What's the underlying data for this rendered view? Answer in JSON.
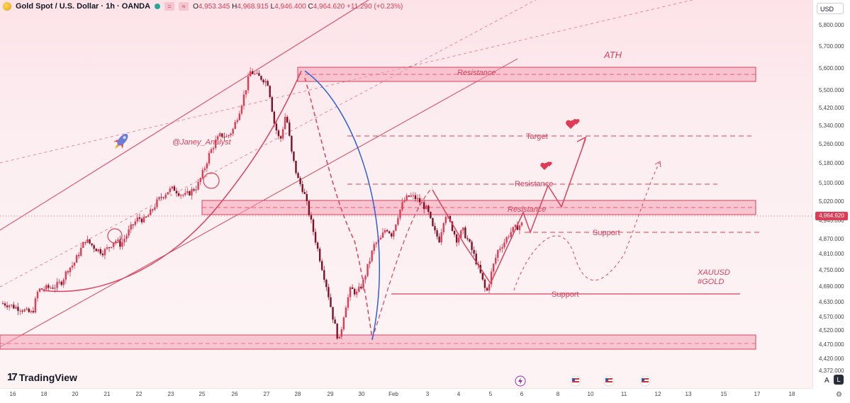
{
  "header": {
    "title": "Gold Spot / U.S. Dollar · 1h · OANDA",
    "btn_eq": "=",
    "btn_wave": "≈",
    "open_label": "O",
    "open": "4,953.345",
    "high_label": "H",
    "high": "4,968.915",
    "low_label": "L",
    "low": "4,946.400",
    "close_label": "C",
    "close": "4,964.620",
    "change": "+11.290 (+0.23%)"
  },
  "currency": "USD",
  "current_price": "4,964.620",
  "brand": "TradingView",
  "brand_mark": "17",
  "auto_label": "A",
  "log_label": "L",
  "settings_icon": "gear-icon",
  "rocket_icon": "rocket-icon",
  "heart_icon": "hearts-icon",
  "event_icons": [
    "lightning-icon",
    "us-flag-icon",
    "us-flag-icon",
    "us-flag-icon"
  ],
  "colors": {
    "up": "#e03b54",
    "down": "#e03b54",
    "zone_fill": "#f4a3b4",
    "zone_stroke": "#d9415d",
    "annot": "#d9415d",
    "curve_blue": "#2f5fd6"
  },
  "annotations": {
    "ath": "ATH",
    "resistance_top": "Resistance",
    "target": "Target",
    "resistance_mid": "Resistance",
    "resistance_zone": "Resistance",
    "support_upper": "Support",
    "support_lower": "Support",
    "author": "@Janey_Analyst",
    "ticker": "XAUUSD",
    "hashtag": "#GOLD"
  },
  "chart_data": {
    "type": "candlestick",
    "symbol": "XAUUSD",
    "interval": "1h",
    "price_ticks": [
      "5,800.000",
      "5,700.000",
      "5,600.000",
      "5,500.000",
      "5,420.000",
      "5,340.000",
      "5,260.000",
      "5,180.000",
      "5,100.000",
      "5,020.000",
      "4,945.000",
      "4,870.000",
      "4,810.000",
      "4,750.000",
      "4,690.000",
      "4,630.000",
      "4,570.000",
      "4,520.000",
      "4,470.000",
      "4,420.000",
      "4,372.000"
    ],
    "time_ticks": [
      "16",
      "18",
      "20",
      "21",
      "22",
      "23",
      "25",
      "26",
      "27",
      "28",
      "29",
      "30",
      "Feb",
      "3",
      "4",
      "5",
      "6",
      "8",
      "10",
      "11",
      "12",
      "13",
      "15",
      "17",
      "18",
      "19"
    ],
    "path_close": [
      4640,
      4635,
      4625,
      4620,
      4605,
      4600,
      4695,
      4700,
      4705,
      4710,
      4730,
      4780,
      4800,
      4850,
      4900,
      4880,
      4860,
      4850,
      4870,
      4900,
      4880,
      4920,
      4960,
      4990,
      4980,
      5010,
      5050,
      5080,
      5100,
      5110,
      5090,
      5080,
      5100,
      5120,
      5180,
      5250,
      5300,
      5330,
      5320,
      5350,
      5420,
      5500,
      5590,
      5570,
      5560,
      5540,
      5380,
      5300,
      5420,
      5250,
      5150,
      5100,
      5000,
      4900,
      4800,
      4700,
      4580,
      4480,
      4620,
      4700,
      4680,
      4720,
      4800,
      4880,
      4900,
      4950,
      4920,
      5000,
      5060,
      5080,
      5070,
      5050,
      5020,
      4940,
      4900,
      5010,
      4960,
      4900,
      4940,
      4890,
      4830,
      4760,
      4680,
      4780,
      4860,
      4890,
      4930,
      4950,
      4964.62
    ],
    "zones": [
      {
        "label": "Resistance",
        "from": 5540,
        "to": 5610
      },
      {
        "label": "Resistance",
        "from": 4960,
        "to": 5010
      },
      {
        "label": "",
        "from": 4465,
        "to": 4510
      }
    ],
    "levels": [
      {
        "label": "Target",
        "price": 5290
      },
      {
        "label": "Resistance",
        "price": 5100
      },
      {
        "label": "Support",
        "price": 4905
      },
      {
        "label": "Support",
        "price": 4665
      }
    ]
  }
}
